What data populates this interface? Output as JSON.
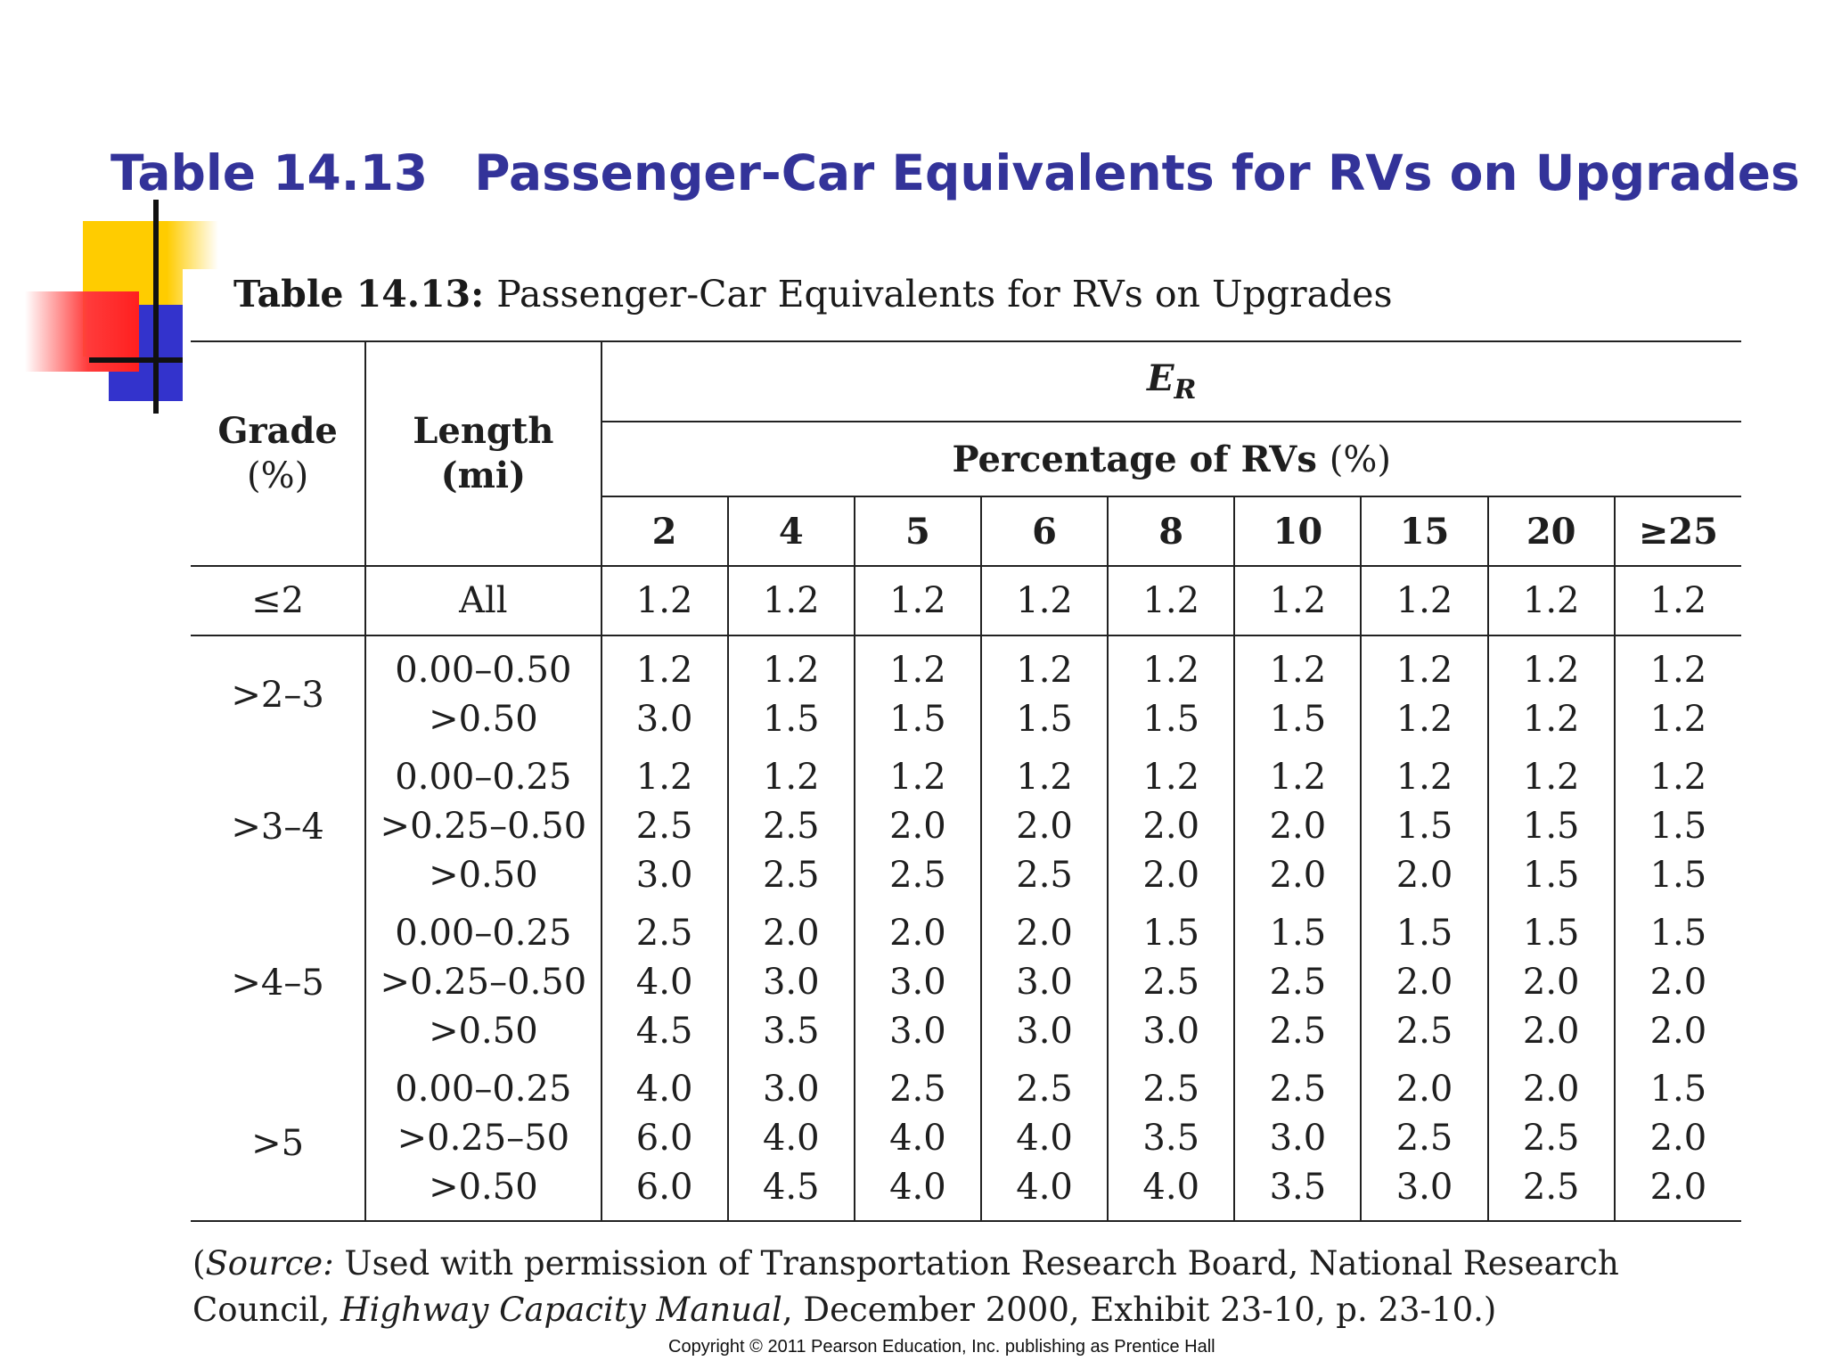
{
  "slide": {
    "title_number": "Table 14.13",
    "title_text": "Passenger-Car Equivalents for RVs on Upgrades"
  },
  "table": {
    "caption_label": "Table 14.13:",
    "caption_text": "Passenger-Car Equivalents for RVs on Upgrades",
    "header": {
      "grade": "Grade",
      "grade_unit": "(%)",
      "length": "Length",
      "length_unit": "(mi)",
      "er_symbol": "E",
      "er_subscript": "R",
      "percentage_label": "Percentage of RVs",
      "percentage_unit": "(%)",
      "columns": [
        "2",
        "4",
        "5",
        "6",
        "8",
        "10",
        "15",
        "20",
        "≥25"
      ]
    },
    "groups": [
      {
        "grade": "≤2",
        "rows": [
          {
            "length": "All",
            "values": [
              "1.2",
              "1.2",
              "1.2",
              "1.2",
              "1.2",
              "1.2",
              "1.2",
              "1.2",
              "1.2"
            ]
          }
        ]
      },
      {
        "grade": ">2–3",
        "rows": [
          {
            "length": "0.00–0.50",
            "values": [
              "1.2",
              "1.2",
              "1.2",
              "1.2",
              "1.2",
              "1.2",
              "1.2",
              "1.2",
              "1.2"
            ]
          },
          {
            "length": ">0.50",
            "values": [
              "3.0",
              "1.5",
              "1.5",
              "1.5",
              "1.5",
              "1.5",
              "1.2",
              "1.2",
              "1.2"
            ]
          }
        ]
      },
      {
        "grade": ">3–4",
        "rows": [
          {
            "length": "0.00–0.25",
            "values": [
              "1.2",
              "1.2",
              "1.2",
              "1.2",
              "1.2",
              "1.2",
              "1.2",
              "1.2",
              "1.2"
            ]
          },
          {
            "length": ">0.25–0.50",
            "values": [
              "2.5",
              "2.5",
              "2.0",
              "2.0",
              "2.0",
              "2.0",
              "1.5",
              "1.5",
              "1.5"
            ]
          },
          {
            "length": ">0.50",
            "values": [
              "3.0",
              "2.5",
              "2.5",
              "2.5",
              "2.0",
              "2.0",
              "2.0",
              "1.5",
              "1.5"
            ]
          }
        ]
      },
      {
        "grade": ">4–5",
        "rows": [
          {
            "length": "0.00–0.25",
            "values": [
              "2.5",
              "2.0",
              "2.0",
              "2.0",
              "1.5",
              "1.5",
              "1.5",
              "1.5",
              "1.5"
            ]
          },
          {
            "length": ">0.25–0.50",
            "values": [
              "4.0",
              "3.0",
              "3.0",
              "3.0",
              "2.5",
              "2.5",
              "2.0",
              "2.0",
              "2.0"
            ]
          },
          {
            "length": ">0.50",
            "values": [
              "4.5",
              "3.5",
              "3.0",
              "3.0",
              "3.0",
              "2.5",
              "2.5",
              "2.0",
              "2.0"
            ]
          }
        ]
      },
      {
        "grade": ">5",
        "rows": [
          {
            "length": "0.00–0.25",
            "values": [
              "4.0",
              "3.0",
              "2.5",
              "2.5",
              "2.5",
              "2.5",
              "2.0",
              "2.0",
              "1.5"
            ]
          },
          {
            "length": ">0.25–50",
            "values": [
              "6.0",
              "4.0",
              "4.0",
              "4.0",
              "3.5",
              "3.0",
              "2.5",
              "2.5",
              "2.0"
            ]
          },
          {
            "length": ">0.50",
            "values": [
              "6.0",
              "4.5",
              "4.0",
              "4.0",
              "4.0",
              "3.5",
              "3.0",
              "2.5",
              "2.0"
            ]
          }
        ]
      }
    ]
  },
  "source_note": {
    "open_paren": "(",
    "source_label": "Source:",
    "text1": " Used with permission of Transportation Research Board, National Research Council, ",
    "book_title": "Highway Capacity Manual",
    "text2": ", December 2000, Exhibit 23-10, p. 23-10.)"
  },
  "copyright": "Copyright © 2011 Pearson Education, Inc. publishing as Prentice Hall",
  "colors": {
    "title": "#333399",
    "decor_yellow": "#ffcc00",
    "decor_red": "#ff1f1f",
    "decor_blue": "#3333cc"
  }
}
